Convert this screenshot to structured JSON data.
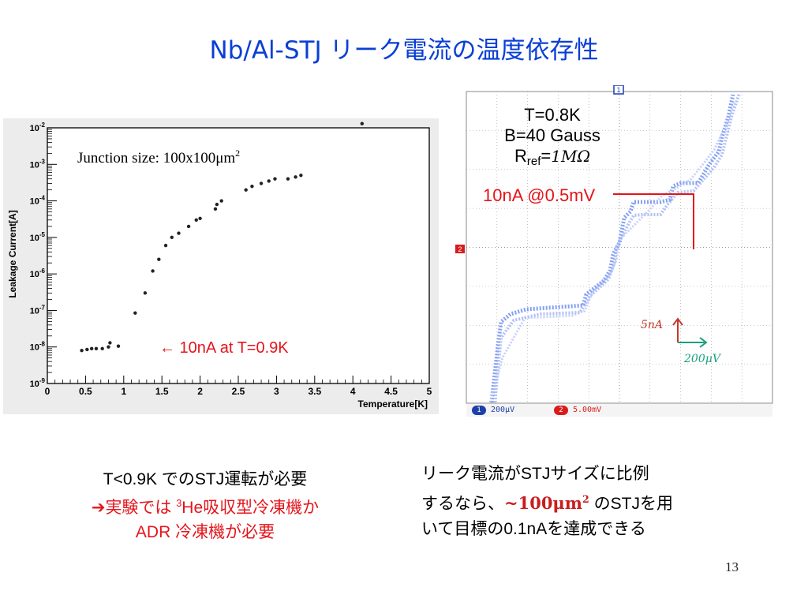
{
  "slide": {
    "title": "Nb/Al-STJ リーク電流の温度依存性",
    "page_number": "13"
  },
  "left_chart": {
    "annotation_junction_prefix": "Junction size: 100x100",
    "annotation_junction_unit": "μm",
    "annotation_junction_exp": "2",
    "annotation_arrow_text": "← 10nA at T=0.9K"
  },
  "chart_data": {
    "type": "scatter",
    "xlabel": "Temperature[K]",
    "ylabel": "Leakage Current[A]",
    "xlim": [
      0,
      5
    ],
    "ylim": [
      1e-09,
      0.01
    ],
    "y_scale": "log",
    "x_ticks": [
      "0",
      "0.5",
      "1",
      "1.5",
      "2",
      "2.5",
      "3",
      "3.5",
      "4",
      "4.5",
      "5"
    ],
    "y_ticks": [
      {
        "base": "10",
        "exp": "-9"
      },
      {
        "base": "10",
        "exp": "-8"
      },
      {
        "base": "10",
        "exp": "-7"
      },
      {
        "base": "10",
        "exp": "-6"
      },
      {
        "base": "10",
        "exp": "-5"
      },
      {
        "base": "10",
        "exp": "-4"
      },
      {
        "base": "10",
        "exp": "-3"
      },
      {
        "base": "10",
        "exp": "-2"
      }
    ],
    "points": [
      [
        0.45,
        8e-09
      ],
      [
        0.52,
        8.5e-09
      ],
      [
        0.58,
        9e-09
      ],
      [
        0.64,
        9e-09
      ],
      [
        0.72,
        9e-09
      ],
      [
        0.8,
        1e-08
      ],
      [
        0.82,
        1.3e-08
      ],
      [
        0.93,
        1.05e-08
      ],
      [
        1.15,
        8.5e-08
      ],
      [
        1.28,
        3e-07
      ],
      [
        1.38,
        1.2e-06
      ],
      [
        1.46,
        2.5e-06
      ],
      [
        1.55,
        6e-06
      ],
      [
        1.63,
        1e-05
      ],
      [
        1.72,
        1.3e-05
      ],
      [
        1.85,
        2e-05
      ],
      [
        1.95,
        3e-05
      ],
      [
        2.0,
        3.3e-05
      ],
      [
        2.2,
        6e-05
      ],
      [
        2.22,
        8e-05
      ],
      [
        2.28,
        0.0001
      ],
      [
        2.6,
        0.0002
      ],
      [
        2.68,
        0.00025
      ],
      [
        2.8,
        0.0003
      ],
      [
        2.9,
        0.00035
      ],
      [
        2.98,
        0.0004
      ],
      [
        3.15,
        0.0004
      ],
      [
        3.25,
        0.00045
      ],
      [
        3.32,
        0.0005
      ],
      [
        4.12,
        0.013
      ]
    ],
    "grid": false
  },
  "scope": {
    "param_T": "T=0.8K",
    "param_B": "B=40 Gauss",
    "param_R_prefix": "R",
    "param_R_sub": "ref",
    "param_R_eq": "=",
    "param_R_value": "1MΩ",
    "annotation_red": "10nA @0.5mV",
    "marker_1": "1",
    "marker_2": "2",
    "ch1_scale": "200μV",
    "ch2_scale": "5.00mV",
    "scale_current": "5nA",
    "scale_voltage": "200μV",
    "colors": {
      "grid": "#9a9a9a",
      "trace": "#4f6fe0",
      "red_line": "#e4141b",
      "ch1": "#1d3fa8",
      "ch2": "#d81c1c"
    }
  },
  "notes_left": {
    "line1": "T<0.9K でのSTJ運転が必要",
    "line2_arrow": "➔",
    "line2_a": "実験では ",
    "line2_sup": "3",
    "line2_b": "He吸収型冷凍機か",
    "line3": "ADR 冷凍機が必要"
  },
  "notes_right": {
    "line1": "リーク電流がSTJサイズに比例",
    "line2_a": "するなら、",
    "line2_bold": "~100μm",
    "line2_bold_sup": "2",
    "line2_b": " のSTJを用",
    "line3": "いて目標の0.1nAを達成できる"
  }
}
